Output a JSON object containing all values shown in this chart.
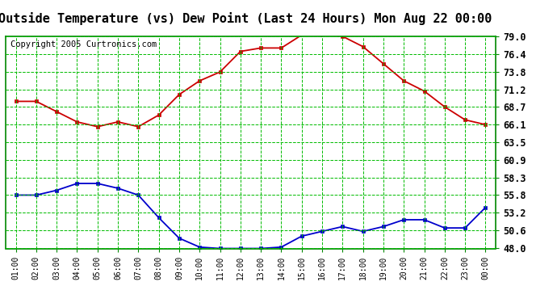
{
  "title": "Outside Temperature (vs) Dew Point (Last 24 Hours) Mon Aug 22 00:00",
  "copyright": "Copyright 2005 Curtronics.com",
  "x_labels": [
    "01:00",
    "02:00",
    "03:00",
    "04:00",
    "05:00",
    "06:00",
    "07:00",
    "08:00",
    "09:00",
    "10:00",
    "11:00",
    "12:00",
    "13:00",
    "14:00",
    "15:00",
    "16:00",
    "17:00",
    "18:00",
    "19:00",
    "20:00",
    "21:00",
    "22:00",
    "23:00",
    "00:00"
  ],
  "temp_values": [
    69.5,
    69.5,
    68.0,
    66.5,
    65.8,
    66.5,
    65.8,
    67.5,
    70.5,
    72.5,
    73.8,
    76.8,
    77.3,
    77.3,
    79.2,
    79.2,
    79.0,
    77.5,
    75.0,
    72.5,
    71.0,
    68.7,
    66.8,
    66.1
  ],
  "dew_values": [
    55.8,
    55.8,
    56.5,
    57.5,
    57.5,
    56.8,
    55.8,
    52.5,
    49.5,
    48.2,
    48.0,
    48.0,
    48.0,
    48.2,
    49.8,
    50.5,
    51.2,
    50.5,
    51.2,
    52.2,
    52.2,
    51.0,
    51.0,
    54.0
  ],
  "temp_color": "#cc0000",
  "dew_color": "#0000cc",
  "bg_color": "#ffffff",
  "plot_bg_color": "#ffffff",
  "grid_color": "#00bb00",
  "border_color": "#008800",
  "ylim": [
    48.0,
    79.0
  ],
  "yticks": [
    48.0,
    50.6,
    53.2,
    55.8,
    58.3,
    60.9,
    63.5,
    66.1,
    68.7,
    71.2,
    73.8,
    76.4,
    79.0
  ],
  "title_fontsize": 11,
  "copyright_fontsize": 7.5,
  "tick_fontsize": 8.5,
  "xtick_fontsize": 7
}
